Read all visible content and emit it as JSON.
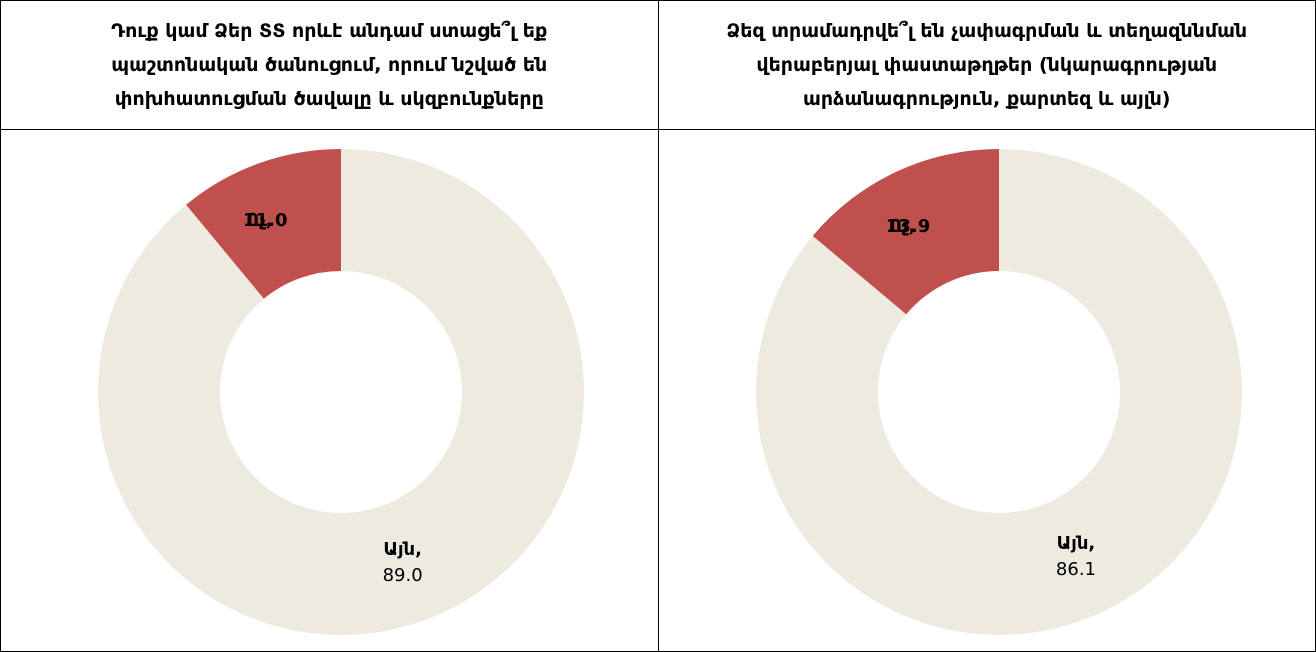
{
  "chart_data": [
    {
      "type": "donut",
      "title": "Դուք կամ Ձեր ՏՏ որևէ անդամ ստացե՞լ եք պաշտոնական ծանուցում, որում նշված են փոխհատուցման ծավալը և սկզբունքները",
      "categories": [
        "Այն,",
        "Ոչ,"
      ],
      "values": [
        89.0,
        11.0
      ],
      "value_labels": [
        "89.0",
        "11.0"
      ],
      "colors": [
        "#edeae0",
        "#c0504d"
      ]
    },
    {
      "type": "donut",
      "title": "Ձեզ տրամադրվե՞լ են չափագրման և տեղազննման վերաբերյալ փաստաթղթեր (նկարագրության արձանագրություն, քարտեզ և այլն)",
      "categories": [
        "Այն,",
        "Ոչ,"
      ],
      "values": [
        86.1,
        13.9
      ],
      "value_labels": [
        "86.1",
        "13.9"
      ],
      "colors": [
        "#edeae0",
        "#c0504d"
      ]
    }
  ]
}
